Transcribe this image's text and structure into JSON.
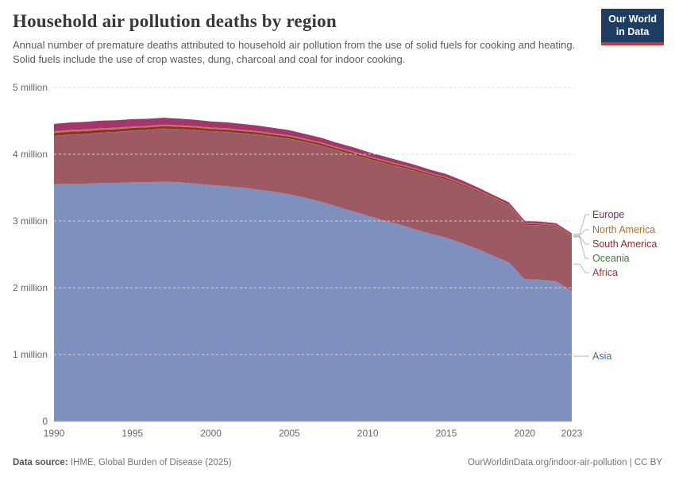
{
  "header": {
    "title": "Household air pollution deaths by region",
    "subtitle": "Annual number of premature deaths attributed to household air pollution from the use of solid fuels for cooking and heating. Solid fuels include the use of crop wastes, dung, charcoal and coal for indoor cooking.",
    "logo_line1": "Our World",
    "logo_line2": "in Data"
  },
  "footer": {
    "source_label": "Data source:",
    "source_text": " IHME, Global Burden of Disease (2025)",
    "link_text": "OurWorldinData.org/indoor-air-pollution | CC BY"
  },
  "chart_data": {
    "type": "area",
    "stacked": true,
    "title": "Household air pollution deaths by region",
    "unit": "million deaths per year",
    "xlabel": "",
    "ylabel": "",
    "ylim": [
      0,
      5
    ],
    "grid": "dashed-horizontal",
    "legend_position": "right",
    "ytick_values": [
      0,
      1,
      2,
      3,
      4,
      5
    ],
    "ytick_labels": [
      "0",
      "1 million",
      "2 million",
      "3 million",
      "4 million",
      "5 million"
    ],
    "xticks": [
      1990,
      1995,
      2000,
      2005,
      2010,
      2015,
      2020,
      2023
    ],
    "x": [
      1990,
      1991,
      1992,
      1993,
      1994,
      1995,
      1996,
      1997,
      1998,
      1999,
      2000,
      2001,
      2002,
      2003,
      2004,
      2005,
      2006,
      2007,
      2008,
      2009,
      2010,
      2011,
      2012,
      2013,
      2014,
      2015,
      2016,
      2017,
      2018,
      2019,
      2020,
      2021,
      2022,
      2023
    ],
    "series": [
      {
        "name": "Asia",
        "color": "#7e90bd",
        "label_color": "#3d68a9",
        "values": [
          3.55,
          3.56,
          3.56,
          3.57,
          3.57,
          3.58,
          3.58,
          3.59,
          3.58,
          3.56,
          3.54,
          3.52,
          3.5,
          3.47,
          3.44,
          3.4,
          3.35,
          3.29,
          3.22,
          3.15,
          3.08,
          3.01,
          2.95,
          2.88,
          2.81,
          2.75,
          2.67,
          2.58,
          2.48,
          2.38,
          2.13,
          2.12,
          2.1,
          1.95
        ]
      },
      {
        "name": "Africa",
        "color": "#9d5a63",
        "label_color": "#99363c",
        "values": [
          0.72,
          0.73,
          0.74,
          0.75,
          0.76,
          0.77,
          0.78,
          0.79,
          0.79,
          0.8,
          0.8,
          0.81,
          0.81,
          0.82,
          0.82,
          0.83,
          0.83,
          0.84,
          0.84,
          0.85,
          0.85,
          0.86,
          0.86,
          0.87,
          0.87,
          0.87,
          0.86,
          0.85,
          0.84,
          0.83,
          0.81,
          0.81,
          0.81,
          0.81
        ]
      },
      {
        "name": "Oceania",
        "color": "#548843",
        "label_color": "#3d7c35",
        "values": [
          0.004,
          0.004,
          0.004,
          0.004,
          0.004,
          0.004,
          0.004,
          0.004,
          0.004,
          0.004,
          0.004,
          0.004,
          0.004,
          0.004,
          0.004,
          0.004,
          0.004,
          0.004,
          0.004,
          0.004,
          0.004,
          0.004,
          0.004,
          0.004,
          0.004,
          0.004,
          0.004,
          0.004,
          0.004,
          0.004,
          0.004,
          0.004,
          0.004,
          0.004
        ]
      },
      {
        "name": "South America",
        "color": "#8b3039",
        "label_color": "#8b2e2a",
        "values": [
          0.045,
          0.044,
          0.043,
          0.042,
          0.041,
          0.04,
          0.039,
          0.038,
          0.037,
          0.036,
          0.035,
          0.034,
          0.033,
          0.032,
          0.031,
          0.03,
          0.029,
          0.028,
          0.027,
          0.026,
          0.025,
          0.024,
          0.023,
          0.022,
          0.021,
          0.02,
          0.019,
          0.018,
          0.017,
          0.017,
          0.016,
          0.016,
          0.015,
          0.015
        ]
      },
      {
        "name": "North America",
        "color": "#c8793a",
        "label_color": "#b06e2a",
        "values": [
          0.025,
          0.025,
          0.024,
          0.024,
          0.023,
          0.023,
          0.023,
          0.022,
          0.022,
          0.021,
          0.021,
          0.02,
          0.02,
          0.019,
          0.019,
          0.018,
          0.018,
          0.017,
          0.017,
          0.016,
          0.016,
          0.015,
          0.015,
          0.015,
          0.014,
          0.014,
          0.014,
          0.013,
          0.013,
          0.013,
          0.012,
          0.012,
          0.012,
          0.012
        ]
      },
      {
        "name": "Europe",
        "color": "#a5356c",
        "label_color": "#862a5e",
        "values": [
          0.11,
          0.112,
          0.113,
          0.112,
          0.11,
          0.108,
          0.105,
          0.102,
          0.099,
          0.096,
          0.092,
          0.089,
          0.086,
          0.083,
          0.08,
          0.077,
          0.073,
          0.07,
          0.066,
          0.063,
          0.06,
          0.057,
          0.054,
          0.051,
          0.048,
          0.046,
          0.043,
          0.04,
          0.037,
          0.034,
          0.03,
          0.028,
          0.026,
          0.025
        ]
      }
    ]
  }
}
